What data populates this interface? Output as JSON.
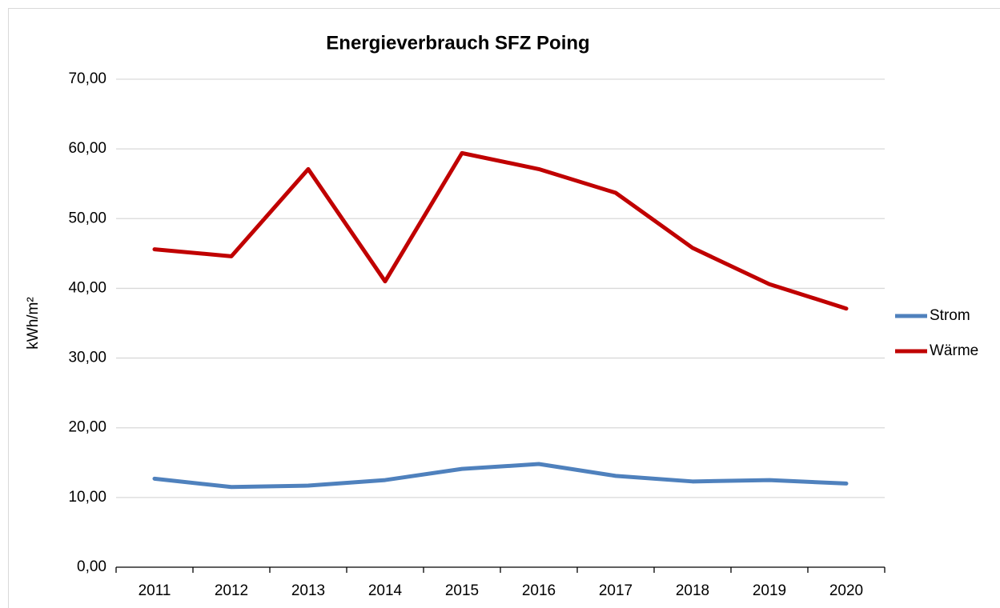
{
  "chart_data": {
    "type": "line",
    "title": "Energieverbrauch SFZ Poing",
    "y_label": "kWh/m²",
    "categories": [
      "2011",
      "2012",
      "2013",
      "2014",
      "2015",
      "2016",
      "2017",
      "2018",
      "2019",
      "2020"
    ],
    "series": [
      {
        "name": "Strom",
        "color": "#4f81bd",
        "values": [
          12.7,
          11.5,
          11.7,
          12.5,
          14.1,
          14.8,
          13.1,
          12.3,
          12.5,
          12.0
        ]
      },
      {
        "name": "Wärme",
        "color": "#c00000",
        "values": [
          45.6,
          44.6,
          57.1,
          41.0,
          59.4,
          57.1,
          53.7,
          45.8,
          40.6,
          37.1
        ]
      }
    ],
    "ylim": [
      0,
      70
    ],
    "yticks": [
      {
        "value": 0,
        "label": "0,00"
      },
      {
        "value": 10,
        "label": "10,00"
      },
      {
        "value": 20,
        "label": "20,00"
      },
      {
        "value": 30,
        "label": "30,00"
      },
      {
        "value": 40,
        "label": "40,00"
      },
      {
        "value": 50,
        "label": "50,00"
      },
      {
        "value": 60,
        "label": "60,00"
      },
      {
        "value": 70,
        "label": "70,00"
      }
    ],
    "grid": true,
    "legend": "right"
  }
}
